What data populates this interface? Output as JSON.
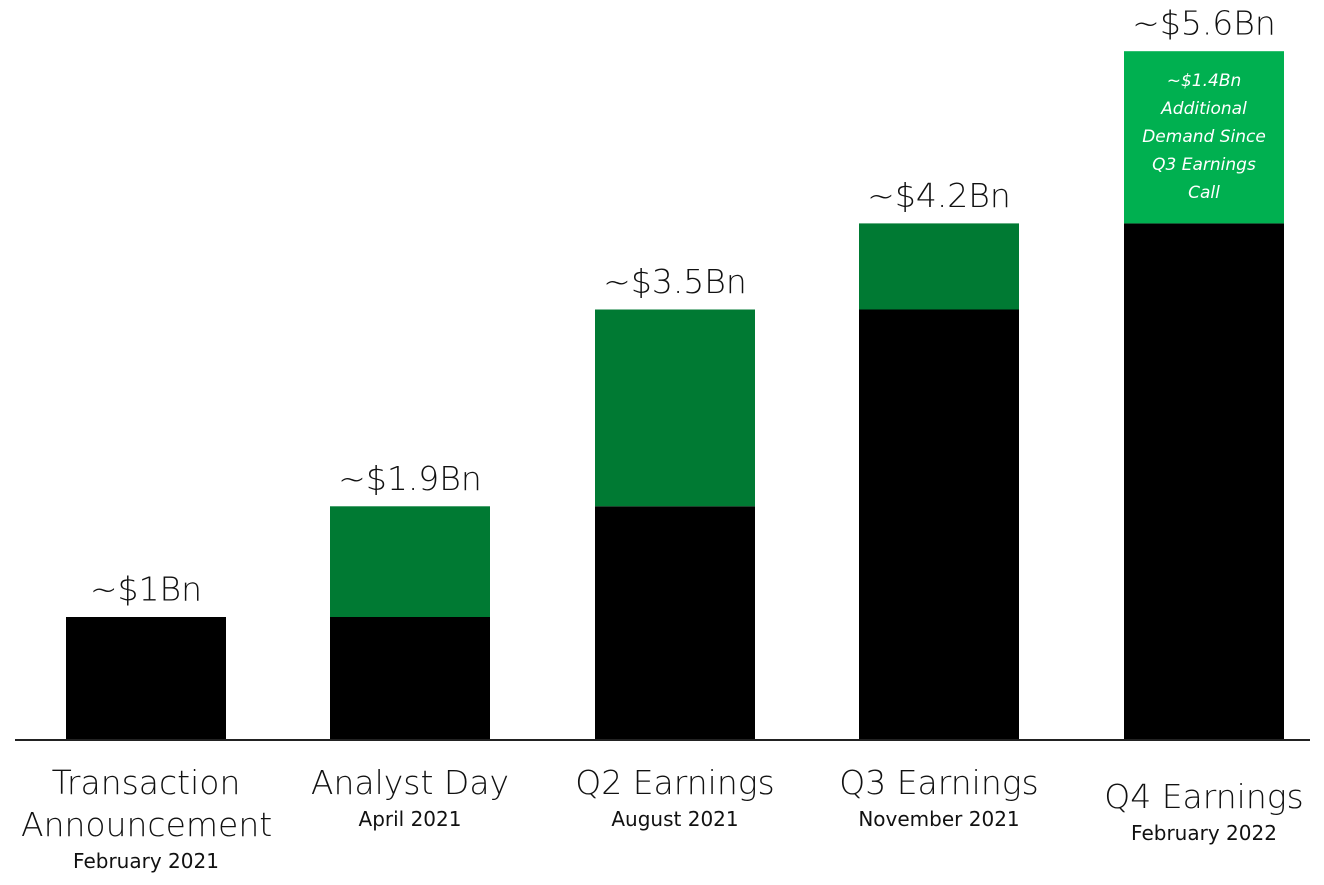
{
  "chart_data": {
    "type": "stacked_bar",
    "categories": [
      "Transaction Announcement",
      "Analyst Day",
      "Q2 Earnings",
      "Q3 Earnings",
      "Q4 Earnings"
    ],
    "subcategories": [
      "February 2021",
      "April 2021",
      "August 2021",
      "November 2021",
      "February 2022"
    ],
    "series": [
      {
        "color": "#000000",
        "values": [
          1,
          1,
          1.9,
          3.5,
          4.2
        ]
      },
      {
        "color": "#007a33",
        "colors": [
          "#007a33",
          "#007a33",
          "#007a33",
          "#007a33",
          "#00b050"
        ],
        "values": [
          null,
          0.9,
          1.6,
          0.7,
          1.4
        ]
      }
    ],
    "total_labels": [
      "~$1Bn",
      "~$1.9Bn",
      "~$3.5Bn",
      "~$4.2Bn",
      "~$5.6Bn"
    ],
    "annotation": {
      "lines": [
        "~$1.4Bn",
        "Additional",
        "Demand Since",
        "Q3 Earnings",
        "Call"
      ],
      "color": "#ffffff"
    },
    "ylim": [
      0,
      6
    ]
  }
}
